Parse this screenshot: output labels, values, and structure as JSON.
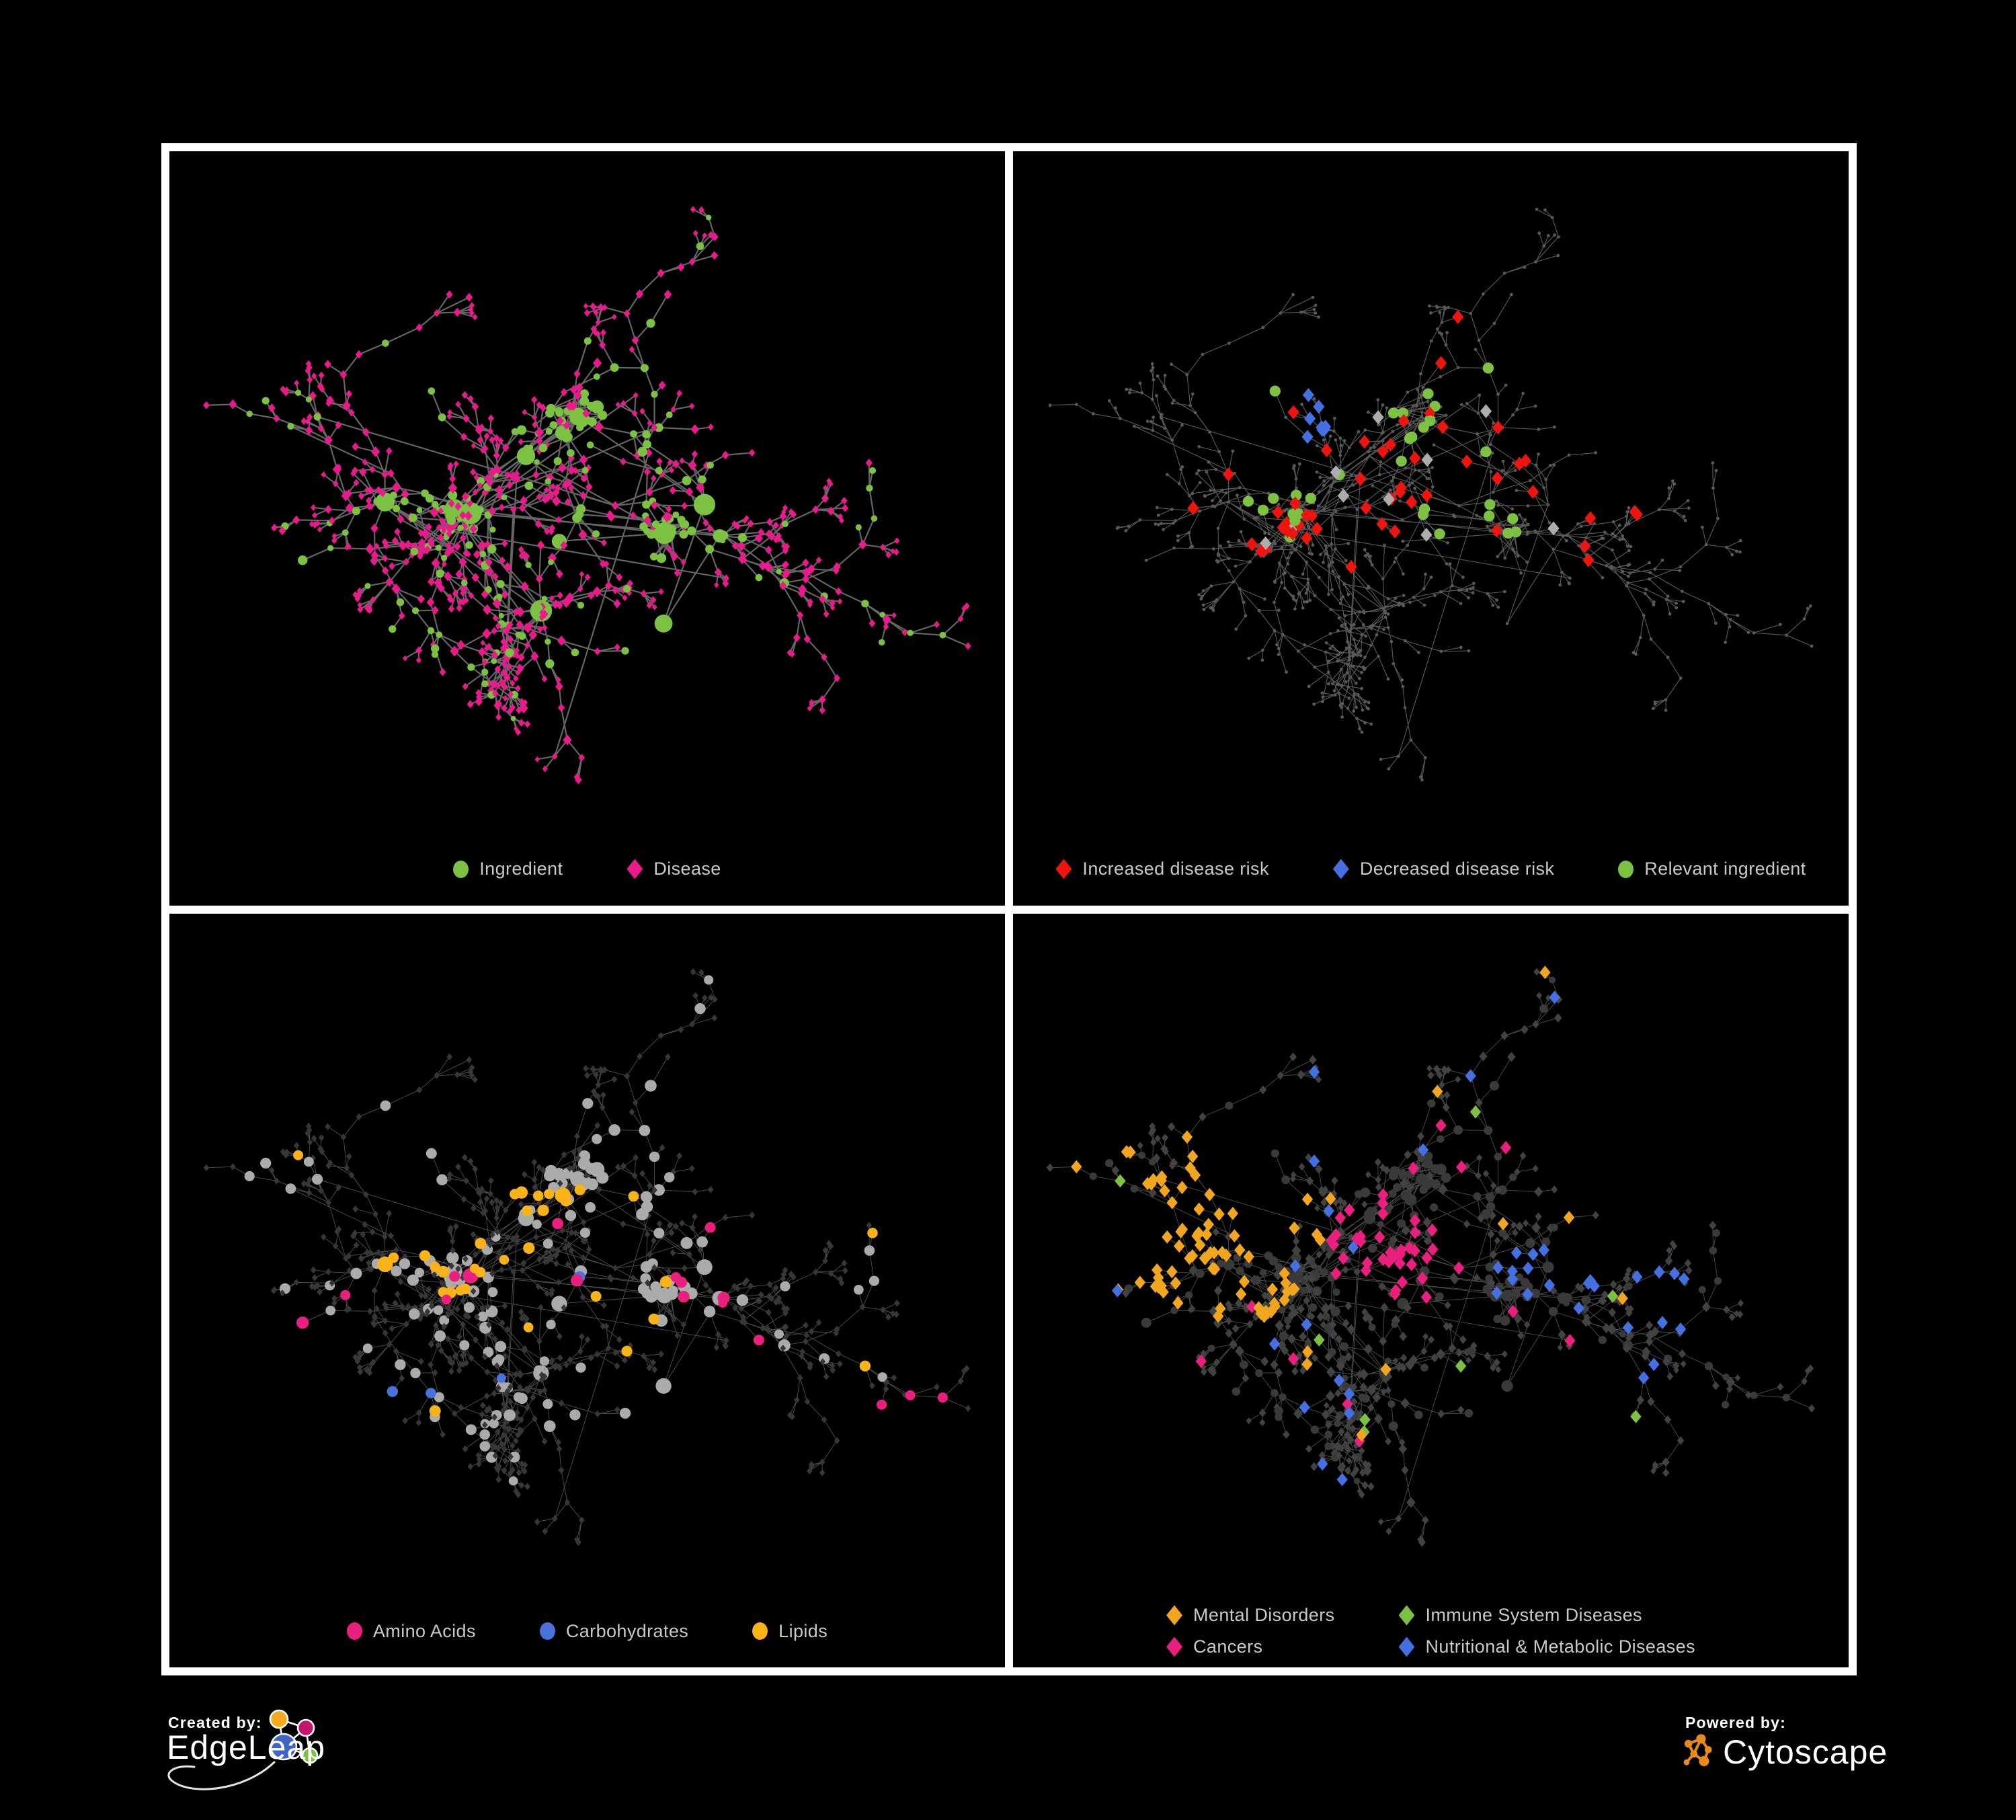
{
  "figure": {
    "background": "#000000",
    "panel_border_color": "#FFFFFF",
    "legend_text_color": "#C9C9C9"
  },
  "palette": {
    "ingredient_green": "#7CC142",
    "disease_magenta": "#EA1A8C",
    "increased_red": "#EE1510",
    "decreased_blue": "#4470E2",
    "neutral_gray": "#ADADAD",
    "relevant_green": "#7CC142",
    "amino_pink": "#EA1F7E",
    "carbs_blue": "#4A72DC",
    "lipids_yellow": "#F9B218",
    "mental_orange": "#F0A71F",
    "immune_green": "#7CC142",
    "cancers_pink": "#EA1F7E",
    "metabolic_blue": "#4470E2",
    "edgeleap_blue": "#3E64C4",
    "edgeleap_orange": "#F2A91D",
    "edgeleap_magenta": "#C4166B",
    "edgeleap_green": "#7CC142",
    "cytoscape_orange": "#E8891B"
  },
  "panels": [
    {
      "id": "ingredient-disease",
      "legend": {
        "columns": 2,
        "items": [
          {
            "shape": "circle",
            "color": "#7CC142",
            "label": "Ingredient"
          },
          {
            "shape": "diamond",
            "color": "#EA1A8C",
            "label": "Disease"
          }
        ]
      }
    },
    {
      "id": "disease-risk",
      "legend": {
        "columns": 3,
        "items": [
          {
            "shape": "diamond",
            "color": "#EE1510",
            "label": "Increased disease risk"
          },
          {
            "shape": "diamond",
            "color": "#4470E2",
            "label": "Decreased disease risk"
          },
          {
            "shape": "circle",
            "color": "#7CC142",
            "label": "Relevant ingredient"
          }
        ]
      }
    },
    {
      "id": "nutrient-classes",
      "legend": {
        "columns": 3,
        "items": [
          {
            "shape": "circle",
            "color": "#EA1F7E",
            "label": "Amino Acids"
          },
          {
            "shape": "circle",
            "color": "#4A72DC",
            "label": "Carbohydrates"
          },
          {
            "shape": "circle",
            "color": "#F9B218",
            "label": "Lipids"
          }
        ]
      }
    },
    {
      "id": "disease-classes",
      "legend": {
        "columns": 2,
        "items": [
          {
            "shape": "diamond",
            "color": "#F0A71F",
            "label": "Mental Disorders"
          },
          {
            "shape": "diamond",
            "color": "#7CC142",
            "label": "Immune System Diseases"
          },
          {
            "shape": "diamond",
            "color": "#EA1F7E",
            "label": "Cancers"
          },
          {
            "shape": "diamond",
            "color": "#4470E2",
            "label": "Nutritional & Metabolic Diseases"
          }
        ]
      }
    }
  ],
  "branding": {
    "created_by_label": "Created by:",
    "edgeleap_name": "EdgeLeap",
    "powered_by_label": "Powered by:",
    "cytoscape_name": "Cytoscape"
  }
}
